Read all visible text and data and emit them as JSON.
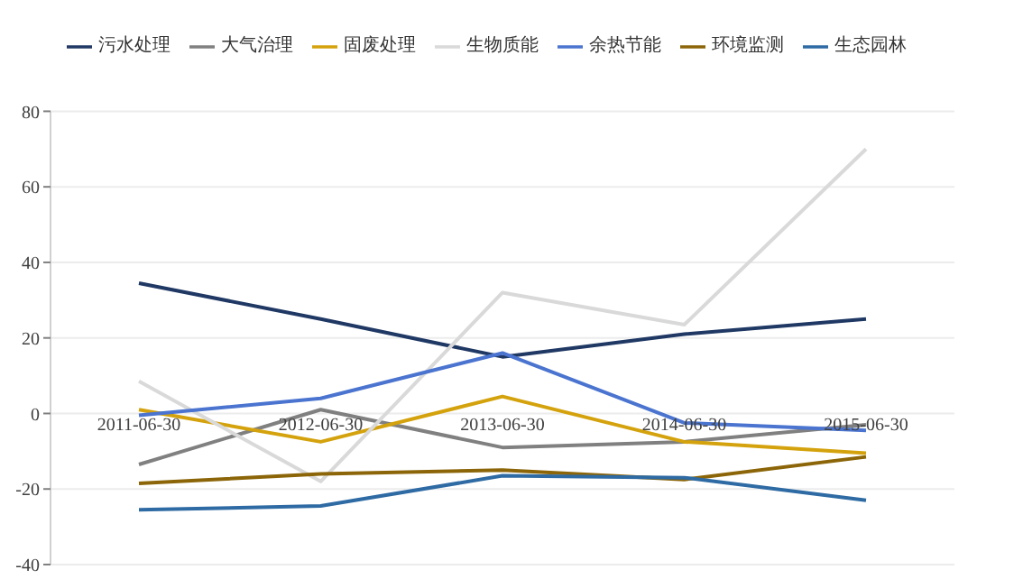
{
  "chart_data": {
    "type": "line",
    "categories": [
      "2011-06-30",
      "2012-06-30",
      "2013-06-30",
      "2014-06-30",
      "2015-06-30"
    ],
    "series": [
      {
        "name": "污水处理",
        "color": "#1f3864",
        "values": [
          34.5,
          25,
          15,
          21,
          25
        ]
      },
      {
        "name": "大气治理",
        "color": "#808080",
        "values": [
          -13.5,
          1,
          -9,
          -7.5,
          -3
        ]
      },
      {
        "name": "固废处理",
        "color": "#d4a20c",
        "values": [
          1,
          -7.5,
          4.5,
          -7.5,
          -10.5
        ]
      },
      {
        "name": "生物质能",
        "color": "#d9d9d9",
        "values": [
          8.5,
          -18,
          32,
          23.5,
          70
        ]
      },
      {
        "name": "余热节能",
        "color": "#4a74cf",
        "values": [
          -0.5,
          4,
          16,
          -2.5,
          -4.5
        ]
      },
      {
        "name": "环境监测",
        "color": "#8b6508",
        "values": [
          -18.5,
          -16,
          -15,
          -17.5,
          -11.5
        ]
      },
      {
        "name": "生态园林",
        "color": "#2e6aa3",
        "values": [
          -25.5,
          -24.5,
          -16.5,
          -17,
          -23
        ]
      }
    ],
    "ylim": [
      -40,
      80
    ],
    "yticks": [
      -40,
      -20,
      0,
      20,
      40,
      60,
      80
    ],
    "grid": "y",
    "legend": "top",
    "marker": "none",
    "line_style": "solid"
  }
}
